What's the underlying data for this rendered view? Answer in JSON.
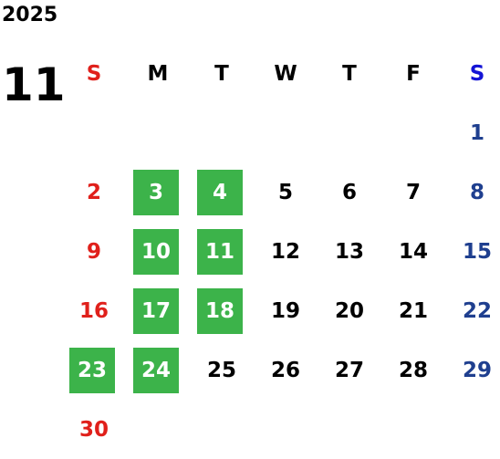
{
  "calendar": {
    "year": "2025",
    "month": "11",
    "weekdays": [
      "S",
      "M",
      "T",
      "W",
      "T",
      "F",
      "S"
    ],
    "weeks": [
      [
        null,
        null,
        null,
        null,
        null,
        null,
        1
      ],
      [
        2,
        3,
        4,
        5,
        6,
        7,
        8
      ],
      [
        9,
        10,
        11,
        12,
        13,
        14,
        15
      ],
      [
        16,
        17,
        18,
        19,
        20,
        21,
        22
      ],
      [
        23,
        24,
        25,
        26,
        27,
        28,
        29
      ],
      [
        30,
        null,
        null,
        null,
        null,
        null,
        null
      ]
    ],
    "highlighted": [
      3,
      4,
      10,
      11,
      17,
      18,
      23,
      24
    ],
    "highlight_color": "#3cb34a",
    "sunday_color": "#e0201b",
    "saturday_header_color": "#1414d6",
    "saturday_color": "#1f3f8f",
    "weekday_color": "#000000"
  }
}
